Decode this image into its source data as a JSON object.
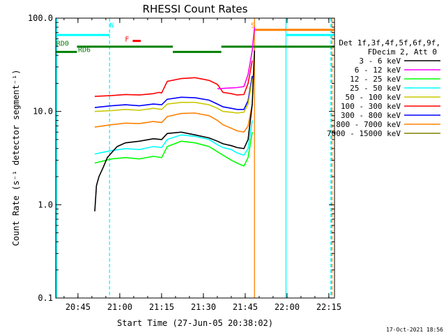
{
  "chart_data": {
    "type": "line",
    "title": "RHESSI Count Rates",
    "xlabel": "Start Time (27-Jun-05 20:38:02)",
    "ylabel": "Count Rate (s⁻¹ detector segment⁻¹)",
    "ylabel_plain": "Count Rate (s",
    "yscale": "log",
    "xlim_minutes": [
      0,
      100
    ],
    "ylim": [
      0.1,
      100.0
    ],
    "x_ticks": [
      {
        "t": 7.97,
        "label": "20:45"
      },
      {
        "t": 22.97,
        "label": "21:00"
      },
      {
        "t": 37.97,
        "label": "21:15"
      },
      {
        "t": 52.97,
        "label": "21:30"
      },
      {
        "t": 67.97,
        "label": "21:45"
      },
      {
        "t": 82.97,
        "label": "22:00"
      },
      {
        "t": 97.97,
        "label": "22:15"
      }
    ],
    "y_ticks": [
      {
        "v": 100.0,
        "label": "100.0"
      },
      {
        "v": 10.0,
        "label": "10.0"
      },
      {
        "v": 1.0,
        "label": "1.0"
      },
      {
        "v": 0.1,
        "label": "0.1"
      }
    ],
    "legend": {
      "placement": "right",
      "header": [
        "Det 1f,3f,4f,5f,6f,9f,",
        "FDecim 2, Att 0"
      ],
      "entries": [
        {
          "label": "3 - 6 keV",
          "color": "#000000"
        },
        {
          "label": "6 - 12 keV",
          "color": "#ff00ff"
        },
        {
          "label": "12 - 25 keV",
          "color": "#00ff00"
        },
        {
          "label": "25 - 50 keV",
          "color": "#00ffff"
        },
        {
          "label": "50 - 100 keV",
          "color": "#c8c800"
        },
        {
          "label": "100 - 300 keV",
          "color": "#ff0000"
        },
        {
          "label": "300 - 800 keV",
          "color": "#0000ff"
        },
        {
          "label": "800 - 7000 keV",
          "color": "#ff8000"
        },
        {
          "label": "7000 - 15000 keV",
          "color": "#808000"
        }
      ]
    },
    "series": [
      {
        "name": "100 - 300 keV",
        "color": "#ff0000",
        "data": [
          [
            14,
            14.5
          ],
          [
            20,
            14.8
          ],
          [
            25,
            15.2
          ],
          [
            30,
            15
          ],
          [
            35,
            15.5
          ],
          [
            37,
            16
          ],
          [
            38,
            15.8
          ],
          [
            40,
            21
          ],
          [
            45,
            22.5
          ],
          [
            50,
            23
          ],
          [
            55,
            21.5
          ],
          [
            58,
            19.5
          ],
          [
            60,
            16
          ],
          [
            63,
            15.5
          ],
          [
            65,
            15
          ],
          [
            67.5,
            15.2
          ],
          [
            69,
            20
          ],
          [
            70.5,
            35
          ]
        ]
      },
      {
        "name": "300 - 800 keV",
        "color": "#0000ff",
        "data": [
          [
            14,
            11
          ],
          [
            20,
            11.5
          ],
          [
            25,
            11.8
          ],
          [
            30,
            11.5
          ],
          [
            35,
            12
          ],
          [
            38,
            11.8
          ],
          [
            40,
            13.5
          ],
          [
            45,
            14.2
          ],
          [
            50,
            14
          ],
          [
            55,
            13.2
          ],
          [
            58,
            12
          ],
          [
            60,
            11.2
          ],
          [
            63,
            10.8
          ],
          [
            65,
            10.5
          ],
          [
            67.5,
            10.5
          ],
          [
            69,
            13
          ],
          [
            70.5,
            24
          ]
        ]
      },
      {
        "name": "50 - 100 keV",
        "color": "#c8c800",
        "data": [
          [
            14,
            10
          ],
          [
            20,
            10.2
          ],
          [
            25,
            10.5
          ],
          [
            30,
            10.3
          ],
          [
            35,
            10.8
          ],
          [
            38,
            10.5
          ],
          [
            40,
            12
          ],
          [
            45,
            12.5
          ],
          [
            50,
            12.5
          ],
          [
            55,
            11.8
          ],
          [
            58,
            10.8
          ],
          [
            60,
            10
          ],
          [
            63,
            9.8
          ],
          [
            65,
            9.6
          ],
          [
            67.5,
            9.8
          ],
          [
            69,
            12
          ],
          [
            70.5,
            22
          ]
        ]
      },
      {
        "name": "800 - 7000 keV",
        "color": "#ff8000",
        "data": [
          [
            14,
            6.8
          ],
          [
            20,
            7.2
          ],
          [
            25,
            7.5
          ],
          [
            30,
            7.4
          ],
          [
            35,
            7.8
          ],
          [
            38,
            7.6
          ],
          [
            40,
            8.8
          ],
          [
            45,
            9.5
          ],
          [
            50,
            9.6
          ],
          [
            55,
            9
          ],
          [
            58,
            8
          ],
          [
            60,
            7.2
          ],
          [
            63,
            6.6
          ],
          [
            65,
            6.2
          ],
          [
            67.5,
            6
          ],
          [
            69,
            7
          ],
          [
            70.5,
            12
          ]
        ]
      },
      {
        "name": "25 - 50 keV",
        "color": "#00ffff",
        "data": [
          [
            14,
            3.5
          ],
          [
            20,
            3.8
          ],
          [
            25,
            4
          ],
          [
            30,
            3.9
          ],
          [
            35,
            4.2
          ],
          [
            38,
            4.1
          ],
          [
            40,
            5
          ],
          [
            45,
            5.6
          ],
          [
            50,
            5.4
          ],
          [
            55,
            5
          ],
          [
            58,
            4.4
          ],
          [
            60,
            4.1
          ],
          [
            63,
            3.9
          ],
          [
            65,
            3.6
          ],
          [
            67.5,
            3.4
          ],
          [
            69,
            4
          ],
          [
            70.5,
            8
          ]
        ]
      },
      {
        "name": "12 - 25 keV",
        "color": "#00ff00",
        "data": [
          [
            14,
            2.8
          ],
          [
            20,
            3.1
          ],
          [
            25,
            3.2
          ],
          [
            30,
            3.1
          ],
          [
            35,
            3.3
          ],
          [
            38,
            3.2
          ],
          [
            40,
            4.2
          ],
          [
            45,
            4.8
          ],
          [
            50,
            4.6
          ],
          [
            55,
            4.2
          ],
          [
            58,
            3.7
          ],
          [
            60,
            3.4
          ],
          [
            63,
            3
          ],
          [
            65,
            2.8
          ],
          [
            67.5,
            2.6
          ],
          [
            69,
            3.2
          ],
          [
            70.5,
            6
          ]
        ]
      },
      {
        "name": "3 - 6 keV",
        "color": "#000000",
        "data": [
          [
            14,
            0.85
          ],
          [
            14.6,
            1.6
          ],
          [
            15.5,
            2
          ],
          [
            17,
            2.5
          ],
          [
            18.5,
            3.2
          ],
          [
            20,
            3.6
          ],
          [
            22,
            4.2
          ],
          [
            25,
            4.6
          ],
          [
            30,
            4.8
          ],
          [
            35,
            5.1
          ],
          [
            38,
            5.0
          ],
          [
            40,
            5.8
          ],
          [
            45,
            6
          ],
          [
            50,
            5.6
          ],
          [
            55,
            5.2
          ],
          [
            58,
            4.8
          ],
          [
            60,
            4.5
          ],
          [
            63,
            4.3
          ],
          [
            65,
            4.1
          ],
          [
            67.5,
            4
          ],
          [
            69,
            5
          ],
          [
            70.5,
            12
          ],
          [
            71.3,
            45
          ]
        ]
      },
      {
        "name": "6 - 12 keV",
        "color": "#ff00ff",
        "data": [
          [
            58,
            17.5
          ],
          [
            62,
            17.8
          ],
          [
            65,
            18
          ],
          [
            67.5,
            18.5
          ],
          [
            69,
            25
          ],
          [
            70.5,
            45
          ],
          [
            71.3,
            80
          ]
        ]
      }
    ],
    "markers": [
      {
        "label": "N",
        "t": 19.3,
        "v": 79,
        "color": "#00ffff"
      },
      {
        "label": "F",
        "t": 24.8,
        "v": 56,
        "color": "#ff0000"
      },
      {
        "label": "S",
        "t": 70.0,
        "v": 79,
        "color": "#ff8000"
      },
      {
        "label": "RD0",
        "t": 0.2,
        "v": 50.5,
        "color": "#008000"
      },
      {
        "label": "RD6",
        "t": 8.0,
        "v": 43.5,
        "color": "#008000"
      }
    ],
    "flag_bars": [
      {
        "color": "#00ffff",
        "v": 66,
        "from": 0,
        "to": 19.3
      },
      {
        "color": "#00ffff",
        "v": 66,
        "from": 82.6,
        "to": 100
      },
      {
        "color": "#ff8000",
        "v": 75,
        "from": 71.4,
        "to": 100
      },
      {
        "color": "#ff0000",
        "v": 57,
        "from": 27.6,
        "to": 30.5
      },
      {
        "color": "#008000",
        "v": 49.5,
        "from": 7.6,
        "to": 42.0
      },
      {
        "color": "#008000",
        "v": 49.5,
        "from": 59.4,
        "to": 100
      },
      {
        "color": "#008000",
        "v": 43.5,
        "from": 0,
        "to": 7.6
      },
      {
        "color": "#008000",
        "v": 43.5,
        "from": 42.0,
        "to": 59.4
      }
    ],
    "vertical_lines": [
      {
        "t": 0.3,
        "color": "#00ffff",
        "style": "solid"
      },
      {
        "t": 19.3,
        "color": "#00ffff",
        "style": "dashed"
      },
      {
        "t": 71.3,
        "color": "#ff8000",
        "style": "solid"
      },
      {
        "t": 82.6,
        "color": "#00ffff",
        "style": "solid"
      },
      {
        "t": 98.7,
        "color": "#00ffff",
        "style": "dashed"
      },
      {
        "t": 99.1,
        "color": "#ff8000",
        "style": "dashed"
      }
    ]
  },
  "footer": {
    "timestamp": "17-Oct-2021 18:56"
  }
}
